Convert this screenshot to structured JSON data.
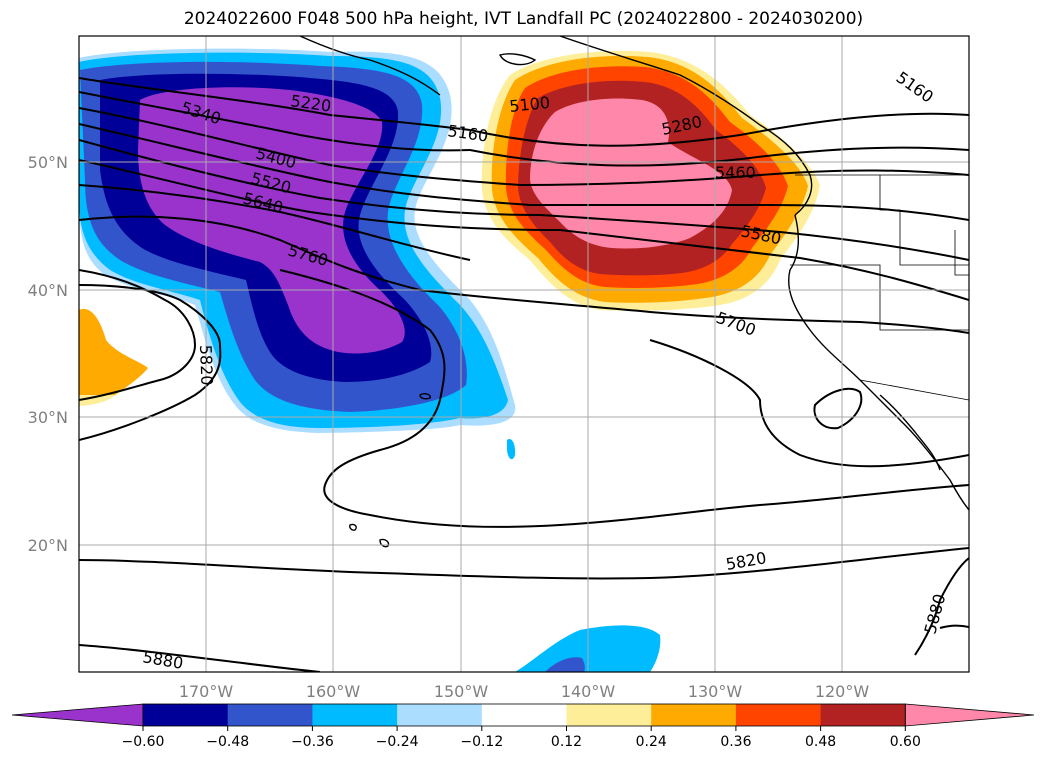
{
  "title": "2024022600 F048 500 hPa height, IVT Landfall PC (2024022800 - 2024030200)",
  "map": {
    "lon_labels": [
      "170°W",
      "160°W",
      "150°W",
      "140°W",
      "130°W",
      "120°W"
    ],
    "lat_labels": [
      "50°N",
      "40°N",
      "30°N",
      "20°N"
    ],
    "contour_labels": [
      "5340",
      "5220",
      "5400",
      "5520",
      "5640",
      "5760",
      "5820",
      "5160",
      "5100",
      "5280",
      "5460",
      "5580",
      "5700",
      "5160",
      "5820",
      "5880",
      "5880"
    ]
  },
  "colorbar": {
    "levels": [
      "−0.60",
      "−0.48",
      "−0.36",
      "−0.24",
      "−0.12",
      "0.12",
      "0.24",
      "0.36",
      "0.48",
      "0.60"
    ],
    "colors": [
      "#9933cc",
      "#000099",
      "#3355cc",
      "#00bbff",
      "#aaddff",
      "#ffffff",
      "#ffee99",
      "#ffaa00",
      "#ff4400",
      "#b22222",
      "#ff88aa"
    ]
  },
  "colors": {
    "neg_0": "#9933cc",
    "neg_1": "#000099",
    "neg_2": "#3355cc",
    "neg_3": "#00bbff",
    "neg_4": "#aaddff",
    "pos_1": "#ffee99",
    "pos_2": "#ffaa00",
    "pos_3": "#ff4400",
    "pos_4": "#b22222",
    "pos_5": "#ff88aa"
  }
}
